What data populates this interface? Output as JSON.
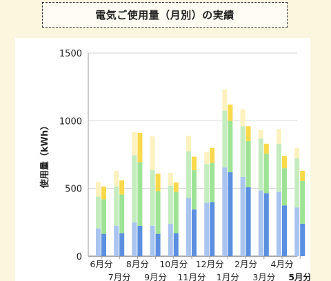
{
  "title": "電気ご使用量（月別）の実績",
  "chart_data": {
    "type": "bar",
    "title": "電気ご使用量（月別）の実績",
    "ylabel": "使用量（kWh）",
    "xlabel": "",
    "ylim": [
      0,
      1500
    ],
    "yticks": [
      0,
      500,
      1000,
      1500
    ],
    "grid": true,
    "stacked": true,
    "paired_bars": "前年 / 今年",
    "categories": [
      "6月分",
      "7月分",
      "8月分",
      "9月分",
      "10月分",
      "11月分",
      "12月分",
      "1月分",
      "2月分",
      "3月分",
      "4月分",
      "5月分"
    ],
    "highlight_category": "5月分",
    "series": [
      {
        "group": "previous_year",
        "color": "#a9c4ee",
        "values": [
          205,
          225,
          250,
          225,
          240,
          430,
          395,
          655,
          585,
          485,
          475,
          360
        ]
      },
      {
        "group": "previous_year",
        "color": "#c5ecbe",
        "values": [
          235,
          290,
          495,
          410,
          280,
          345,
          285,
          420,
          375,
          385,
          355,
          365
        ]
      },
      {
        "group": "previous_year",
        "color": "#fdf2bf",
        "values": [
          110,
          115,
          170,
          250,
          95,
          115,
          90,
          155,
          125,
          60,
          110,
          75
        ]
      },
      {
        "group": "current_year",
        "color": "#5b8fdf",
        "values": [
          165,
          170,
          225,
          165,
          170,
          345,
          400,
          620,
          510,
          465,
          375,
          240
        ]
      },
      {
        "group": "current_year",
        "color": "#9ee395",
        "values": [
          255,
          285,
          470,
          315,
          305,
          290,
          290,
          380,
          340,
          290,
          275,
          315
        ]
      },
      {
        "group": "current_year",
        "color": "#fbd94d",
        "values": [
          95,
          105,
          215,
          130,
          70,
          100,
          110,
          120,
          110,
          75,
          90,
          75
        ]
      }
    ]
  }
}
